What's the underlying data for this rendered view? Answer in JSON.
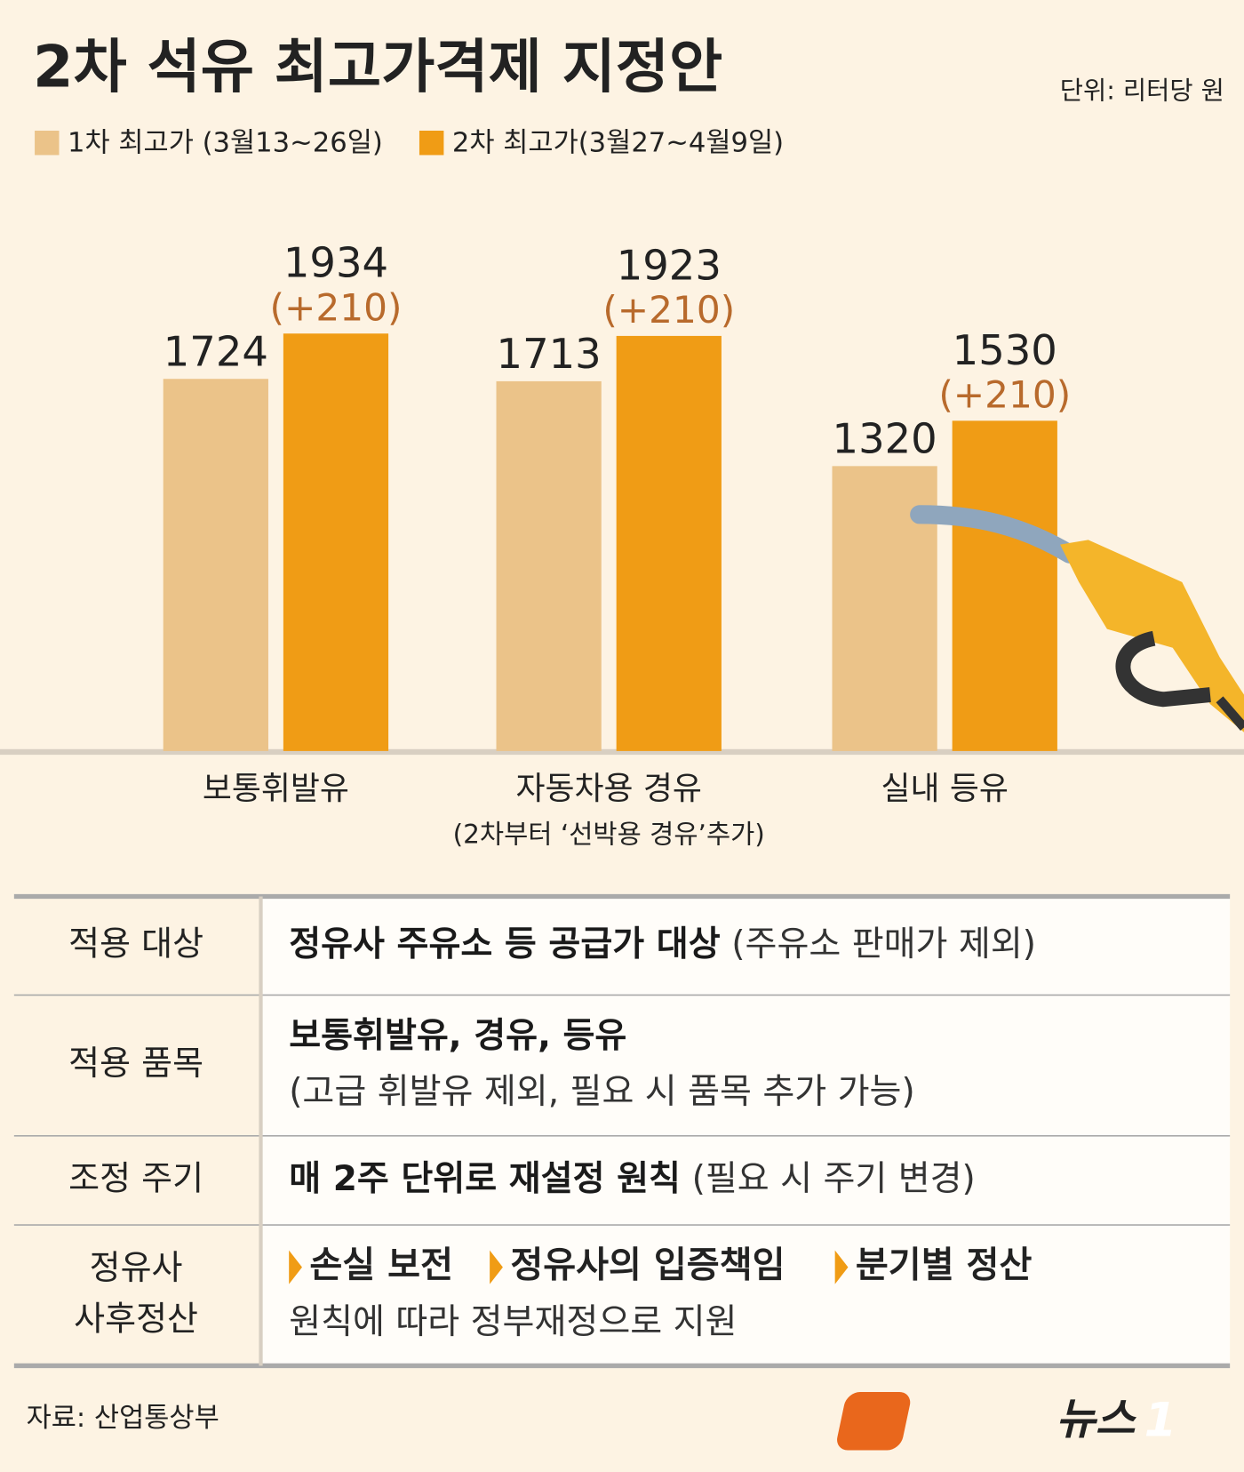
{
  "header": {
    "unit": "단위: 리터당 원"
  },
  "chart_data": {
    "type": "bar",
    "title": "2차 석유 최고가격제 지정안",
    "categories": [
      "보통휘발유",
      "자동차용 경유",
      "실내 등유"
    ],
    "category_subtitles": [
      null,
      "(2차부터 ‘선박용 경유’추가)",
      null
    ],
    "series": [
      {
        "name": "1차 최고가 (3월13~26일)",
        "color": "#ebc389",
        "values": [
          1724,
          1713,
          1320
        ]
      },
      {
        "name": "2차 최고가(3월27~4월9일)",
        "color": "#f09c15",
        "values": [
          1934,
          1923,
          1530
        ],
        "change_labels": [
          "(+210)",
          "(+210)",
          "(+210)"
        ]
      }
    ],
    "ylim": [
      0,
      2000
    ]
  },
  "table": {
    "rows": [
      {
        "label": [
          "적용 대상"
        ],
        "lines": [
          {
            "bold": "정유사 주유소 등 공급가 대상",
            "normal": "(주유소 판매가 제외)"
          }
        ]
      },
      {
        "label": [
          "적용 품목"
        ],
        "lines": [
          {
            "bold": "보통휘발유, 경유, 등유"
          },
          {
            "normal": "(고급 휘발유 제외, 필요 시 품목 추가 가능)"
          }
        ]
      },
      {
        "label": [
          "조정 주기"
        ],
        "lines": [
          {
            "bold": "매 2주 단위로 재설정 원칙",
            "normal": "(필요 시 주기 변경)"
          }
        ]
      },
      {
        "label": [
          "정유사",
          "사후정산"
        ],
        "bullets": [
          "손실 보전",
          "정유사의 입증책임",
          "분기별 정산"
        ],
        "lines": [
          {
            "normal": "원칙에 따라 정부재정으로 지원"
          }
        ]
      }
    ]
  },
  "footer": {
    "source": "자료: 산업통상부",
    "logo_text": "뉴스",
    "logo_mark": "1"
  }
}
